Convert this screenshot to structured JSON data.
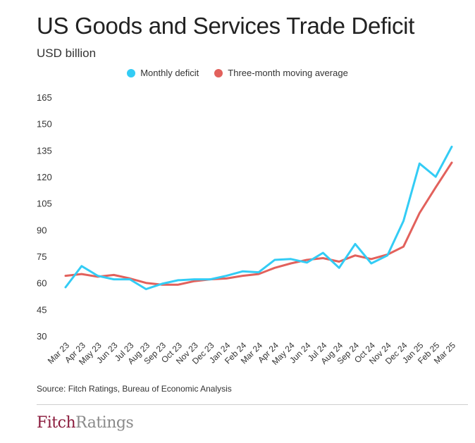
{
  "chart_data": {
    "type": "line",
    "title": "US Goods and Services Trade Deficit",
    "subtitle": "USD billion",
    "categories": [
      "Mar 23",
      "Apr 23",
      "May 23",
      "Jun 23",
      "Jul 23",
      "Aug 23",
      "Sep 23",
      "Oct 23",
      "Nov 23",
      "Dec 23",
      "Jan 24",
      "Feb 24",
      "Mar 24",
      "Apr 24",
      "May 24",
      "Jun 24",
      "Jul 24",
      "Aug 24",
      "Sep 24",
      "Oct 24",
      "Nov 24",
      "Dec 24",
      "Jan 25",
      "Feb 25",
      "Mar 25"
    ],
    "series": [
      {
        "name": "Monthly deficit",
        "color": "#33ccf5",
        "values": [
          57.5,
          69.5,
          64,
          62,
          62,
          56.5,
          59.5,
          61.5,
          62,
          62,
          64,
          66.5,
          66,
          73,
          73.5,
          71.5,
          77,
          68.5,
          82,
          71,
          75.5,
          95,
          127.5,
          120,
          137
        ]
      },
      {
        "name": "Three-month moving average",
        "color": "#e2615c",
        "values": [
          64,
          65,
          63.5,
          64.5,
          62.5,
          60,
          59,
          59,
          61,
          62,
          62.5,
          64,
          65,
          68.5,
          71,
          73,
          74,
          72,
          75.5,
          73.5,
          76,
          80.5,
          99.5,
          114,
          128
        ]
      }
    ],
    "yticks": [
      30,
      45,
      60,
      75,
      90,
      105,
      120,
      135,
      150,
      165
    ],
    "ylim": [
      30,
      165
    ],
    "grid": false,
    "legend_position": "top-center"
  },
  "legend": {
    "monthly_label": "Monthly deficit",
    "average_label": "Three-month moving average"
  },
  "source": "Source: Fitch Ratings, Bureau of Economic Analysis",
  "logo": {
    "part1": "Fitch",
    "part2": "Ratings"
  }
}
